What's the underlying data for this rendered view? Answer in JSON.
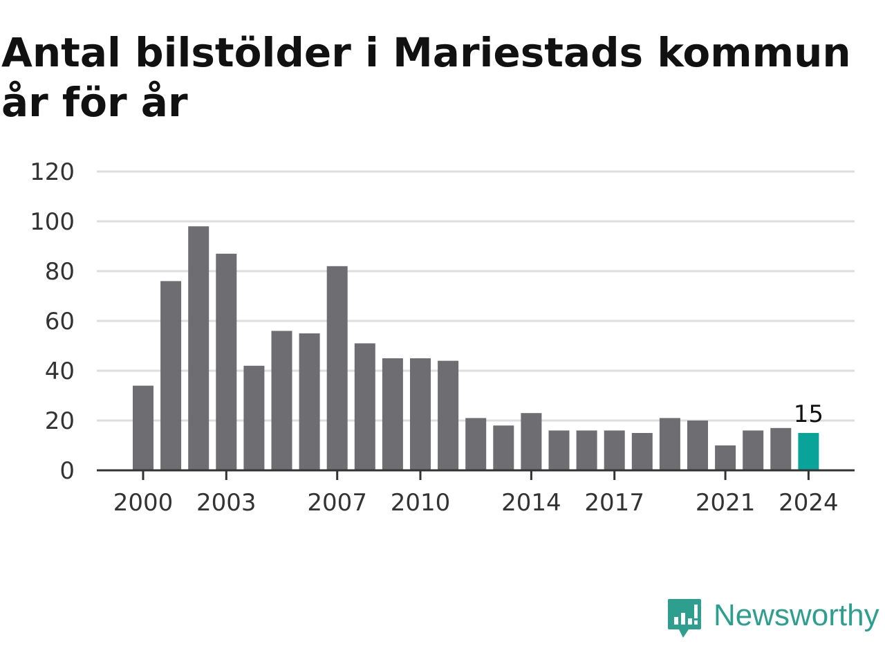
{
  "chart_data": {
    "type": "bar",
    "title": "Antal bilstölder i Mariestads kommun år för år",
    "xlabel": "",
    "ylabel": "",
    "categories": [
      "2000",
      "2001",
      "2002",
      "2003",
      "2004",
      "2005",
      "2006",
      "2007",
      "2008",
      "2009",
      "2010",
      "2011",
      "2012",
      "2013",
      "2014",
      "2015",
      "2016",
      "2017",
      "2018",
      "2019",
      "2020",
      "2021",
      "2022",
      "2023",
      "2024"
    ],
    "values": [
      34,
      76,
      98,
      87,
      42,
      56,
      55,
      82,
      51,
      45,
      45,
      44,
      21,
      18,
      23,
      16,
      16,
      16,
      15,
      21,
      20,
      10,
      16,
      17,
      15
    ],
    "x_tick_labels": [
      "2000",
      "2003",
      "2007",
      "2010",
      "2014",
      "2017",
      "2021",
      "2024"
    ],
    "y_ticks": [
      0,
      20,
      40,
      60,
      80,
      100,
      120
    ],
    "ylim": [
      0,
      120
    ],
    "grid": true,
    "highlight": {
      "category": "2024",
      "label": "15"
    },
    "colors": {
      "bar": "#6e6d72",
      "highlight": "#0aa39a",
      "grid": "#dddddd",
      "axis": "#333333"
    }
  },
  "brand": {
    "name": "Newsworthy",
    "color": "#2e9e8f"
  }
}
